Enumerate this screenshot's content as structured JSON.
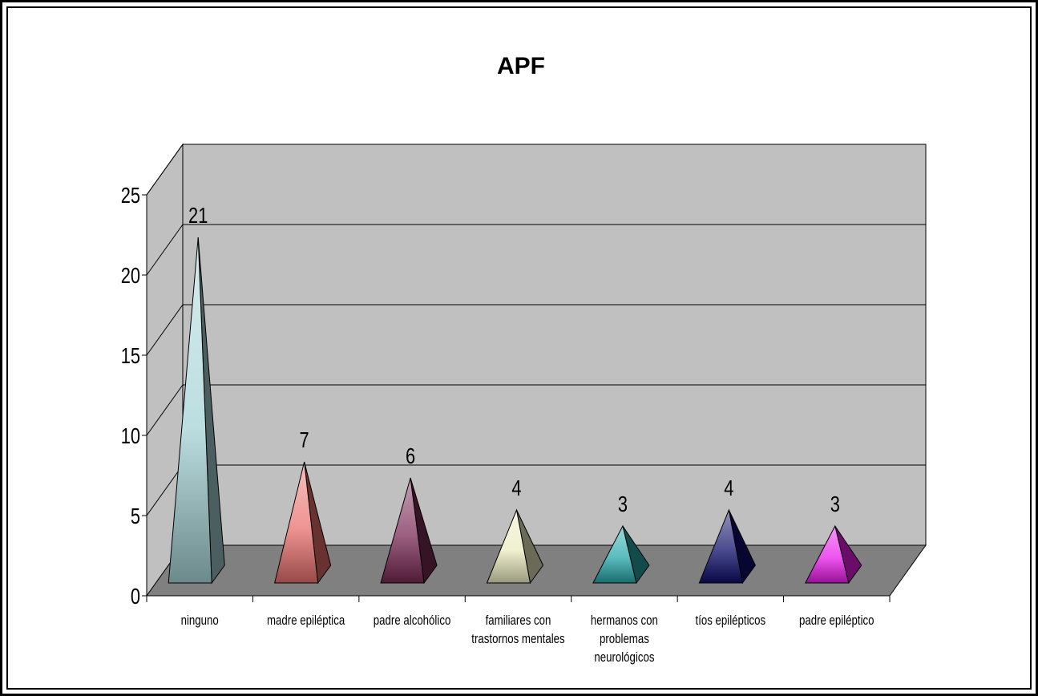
{
  "chart_data": {
    "type": "bar",
    "style": "3d-pyramid",
    "title": "APF",
    "xlabel": "",
    "ylabel": "",
    "ylim": [
      0,
      25
    ],
    "yticks": [
      0,
      5,
      10,
      15,
      20,
      25
    ],
    "grid": true,
    "legend": "none",
    "categories": [
      [
        "ninguno"
      ],
      [
        "madre epiléptica"
      ],
      [
        "padre alcohólico"
      ],
      [
        "familiares con",
        "trastornos mentales"
      ],
      [
        "hermanos con",
        "problemas",
        "neurológicos"
      ],
      [
        "tíos epilépticos"
      ],
      [
        "padre epiléptico"
      ]
    ],
    "values": [
      21,
      7,
      6,
      4,
      3,
      4,
      3
    ],
    "colors": [
      "#a6d3d6",
      "#e8706e",
      "#7a2a55",
      "#ecebc0",
      "#25a6a8",
      "#0d0d6a",
      "#e91ce9"
    ],
    "wall_color": "#c0c0c0",
    "floor_color": "#808080"
  }
}
